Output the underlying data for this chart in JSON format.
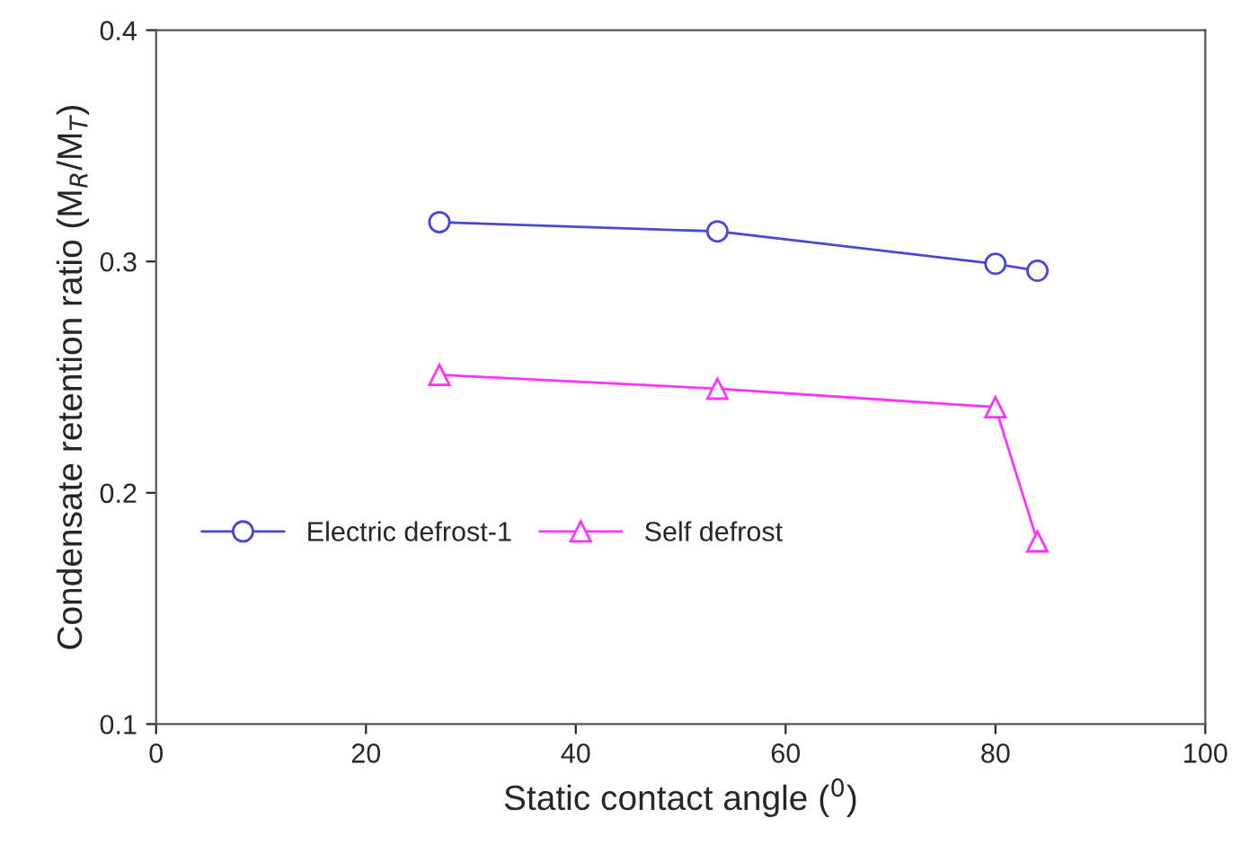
{
  "chart_data": {
    "type": "line",
    "xlabel": "Static contact angle ($^{0}$)",
    "ylabel": "Condensate retention ratio (M$_{R}$/M$_{T}$)",
    "x": [
      27,
      53.5,
      80,
      84
    ],
    "series": [
      {
        "name": "Electric defrost-1",
        "color": "#4848d0",
        "marker": "circle",
        "values": [
          0.317,
          0.313,
          0.299,
          0.296
        ]
      },
      {
        "name": "Self defrost",
        "color": "#ff33ff",
        "marker": "triangle",
        "values": [
          0.251,
          0.245,
          0.237,
          0.179
        ]
      }
    ],
    "xlim": [
      0,
      100
    ],
    "xticks": [
      0,
      20,
      40,
      60,
      80,
      100
    ],
    "ylim": [
      0.1,
      0.4
    ],
    "yticks": [
      0.1,
      0.2,
      0.3,
      0.4
    ],
    "grid": false,
    "legend": "bottom left",
    "line_style": "solid"
  }
}
